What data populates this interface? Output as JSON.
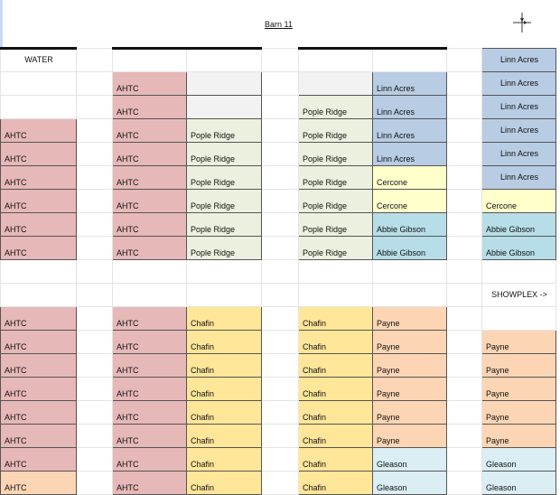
{
  "title": "Barn 11",
  "compass_icon": "compass-icon",
  "colors": {
    "p": "#e6b8b7",
    "g": "#f2f2f2",
    "gr": "#ebf1de",
    "b": "#b8cce4",
    "y": "#ffffcc",
    "t": "#b7dee8",
    "yl": "#ffe699",
    "o": "#fcd5b4",
    "lt": "#daeef3",
    "w": "#ffffff"
  },
  "rows": [
    [
      [
        "WATER",
        "w"
      ],
      [
        "",
        ""
      ],
      [
        "",
        "w"
      ],
      [
        "",
        "w"
      ],
      [
        "",
        ""
      ],
      [
        "",
        "w"
      ],
      [
        "",
        "w"
      ],
      [
        "",
        ""
      ],
      [
        "Linn Acres",
        "b"
      ]
    ],
    [
      [
        "",
        ""
      ],
      [
        "",
        ""
      ],
      [
        "AHTC",
        "p"
      ],
      [
        "",
        "g"
      ],
      [
        "",
        ""
      ],
      [
        "",
        "g"
      ],
      [
        "Linn Acres",
        "b"
      ],
      [
        "",
        ""
      ],
      [
        "Linn Acres",
        "b"
      ]
    ],
    [
      [
        "",
        ""
      ],
      [
        "",
        ""
      ],
      [
        "AHTC",
        "p"
      ],
      [
        "",
        "g"
      ],
      [
        "",
        ""
      ],
      [
        "Pople Ridge",
        "gr"
      ],
      [
        "Linn Acres",
        "b"
      ],
      [
        "",
        ""
      ],
      [
        "Linn Acres",
        "b"
      ]
    ],
    [
      [
        "AHTC",
        "p"
      ],
      [
        "",
        ""
      ],
      [
        "AHTC",
        "p"
      ],
      [
        "Pople Ridge",
        "gr"
      ],
      [
        "",
        ""
      ],
      [
        "Pople Ridge",
        "gr"
      ],
      [
        "Linn Acres",
        "b"
      ],
      [
        "",
        ""
      ],
      [
        "Linn Acres",
        "b"
      ]
    ],
    [
      [
        "AHTC",
        "p"
      ],
      [
        "",
        ""
      ],
      [
        "AHTC",
        "p"
      ],
      [
        "Pople Ridge",
        "gr"
      ],
      [
        "",
        ""
      ],
      [
        "Pople Ridge",
        "gr"
      ],
      [
        "Linn Acres",
        "b"
      ],
      [
        "",
        ""
      ],
      [
        "Linn Acres",
        "b"
      ]
    ],
    [
      [
        "AHTC",
        "p"
      ],
      [
        "",
        ""
      ],
      [
        "AHTC",
        "p"
      ],
      [
        "Pople Ridge",
        "gr"
      ],
      [
        "",
        ""
      ],
      [
        "Pople Ridge",
        "gr"
      ],
      [
        "Cercone",
        "y"
      ],
      [
        "",
        ""
      ],
      [
        "Linn Acres",
        "b"
      ]
    ],
    [
      [
        "AHTC",
        "p"
      ],
      [
        "",
        ""
      ],
      [
        "AHTC",
        "p"
      ],
      [
        "Pople Ridge",
        "gr"
      ],
      [
        "",
        ""
      ],
      [
        "Pople Ridge",
        "gr"
      ],
      [
        "Cercone",
        "y"
      ],
      [
        "",
        ""
      ],
      [
        "Cercone",
        "y"
      ]
    ],
    [
      [
        "AHTC",
        "p"
      ],
      [
        "",
        ""
      ],
      [
        "AHTC",
        "p"
      ],
      [
        "Pople Ridge",
        "gr"
      ],
      [
        "",
        ""
      ],
      [
        "Pople Ridge",
        "gr"
      ],
      [
        "Abbie Gibson",
        "t"
      ],
      [
        "",
        ""
      ],
      [
        "Abbie Gibson",
        "t"
      ]
    ],
    [
      [
        "AHTC",
        "p"
      ],
      [
        "",
        ""
      ],
      [
        "AHTC",
        "p"
      ],
      [
        "Pople Ridge",
        "gr"
      ],
      [
        "",
        ""
      ],
      [
        "Pople Ridge",
        "gr"
      ],
      [
        "Abbie Gibson",
        "t"
      ],
      [
        "",
        ""
      ],
      [
        "Abbie Gibson",
        "t"
      ]
    ],
    [
      [
        "",
        ""
      ],
      [
        "",
        ""
      ],
      [
        "",
        ""
      ],
      [
        "",
        ""
      ],
      [
        "",
        ""
      ],
      [
        "",
        ""
      ],
      [
        "",
        ""
      ],
      [
        "",
        ""
      ],
      [
        "",
        ""
      ]
    ],
    [
      [
        "",
        ""
      ],
      [
        "",
        ""
      ],
      [
        "",
        ""
      ],
      [
        "",
        ""
      ],
      [
        "",
        ""
      ],
      [
        "",
        ""
      ],
      [
        "",
        ""
      ],
      [
        "",
        ""
      ],
      [
        "SHOWPLEX ->",
        ""
      ]
    ],
    [
      [
        "AHTC",
        "p"
      ],
      [
        "",
        ""
      ],
      [
        "AHTC",
        "p"
      ],
      [
        "Chafin",
        "yl"
      ],
      [
        "",
        ""
      ],
      [
        "Chafin",
        "yl"
      ],
      [
        "Payne",
        "o"
      ],
      [
        "",
        ""
      ],
      [
        "",
        ""
      ]
    ],
    [
      [
        "AHTC",
        "p"
      ],
      [
        "",
        ""
      ],
      [
        "AHTC",
        "p"
      ],
      [
        "Chafin",
        "yl"
      ],
      [
        "",
        ""
      ],
      [
        "Chafin",
        "yl"
      ],
      [
        "Payne",
        "o"
      ],
      [
        "",
        ""
      ],
      [
        "Payne",
        "o"
      ]
    ],
    [
      [
        "AHTC",
        "p"
      ],
      [
        "",
        ""
      ],
      [
        "AHTC",
        "p"
      ],
      [
        "Chafin",
        "yl"
      ],
      [
        "",
        ""
      ],
      [
        "Chafin",
        "yl"
      ],
      [
        "Payne",
        "o"
      ],
      [
        "",
        ""
      ],
      [
        "Payne",
        "o"
      ]
    ],
    [
      [
        "AHTC",
        "p"
      ],
      [
        "",
        ""
      ],
      [
        "AHTC",
        "p"
      ],
      [
        "Chafin",
        "yl"
      ],
      [
        "",
        ""
      ],
      [
        "Chafin",
        "yl"
      ],
      [
        "Payne",
        "o"
      ],
      [
        "",
        ""
      ],
      [
        "Payne",
        "o"
      ]
    ],
    [
      [
        "AHTC",
        "p"
      ],
      [
        "",
        ""
      ],
      [
        "AHTC",
        "p"
      ],
      [
        "Chafin",
        "yl"
      ],
      [
        "",
        ""
      ],
      [
        "Chafin",
        "yl"
      ],
      [
        "Payne",
        "o"
      ],
      [
        "",
        ""
      ],
      [
        "Payne",
        "o"
      ]
    ],
    [
      [
        "AHTC",
        "p"
      ],
      [
        "",
        ""
      ],
      [
        "AHTC",
        "p"
      ],
      [
        "Chafin",
        "yl"
      ],
      [
        "",
        ""
      ],
      [
        "Chafin",
        "yl"
      ],
      [
        "Payne",
        "o"
      ],
      [
        "",
        ""
      ],
      [
        "Payne",
        "o"
      ]
    ],
    [
      [
        "AHTC",
        "p"
      ],
      [
        "",
        ""
      ],
      [
        "AHTC",
        "p"
      ],
      [
        "Chafin",
        "yl"
      ],
      [
        "",
        ""
      ],
      [
        "Chafin",
        "yl"
      ],
      [
        "Gleason",
        "lt"
      ],
      [
        "",
        ""
      ],
      [
        "Gleason",
        "lt"
      ]
    ],
    [
      [
        "AHTC",
        "o"
      ],
      [
        "",
        ""
      ],
      [
        "AHTC",
        "p"
      ],
      [
        "Chafin",
        "yl"
      ],
      [
        "",
        ""
      ],
      [
        "Chafin",
        "yl"
      ],
      [
        "Gleason",
        "lt"
      ],
      [
        "",
        ""
      ],
      [
        "Gleason",
        "lt"
      ]
    ]
  ]
}
